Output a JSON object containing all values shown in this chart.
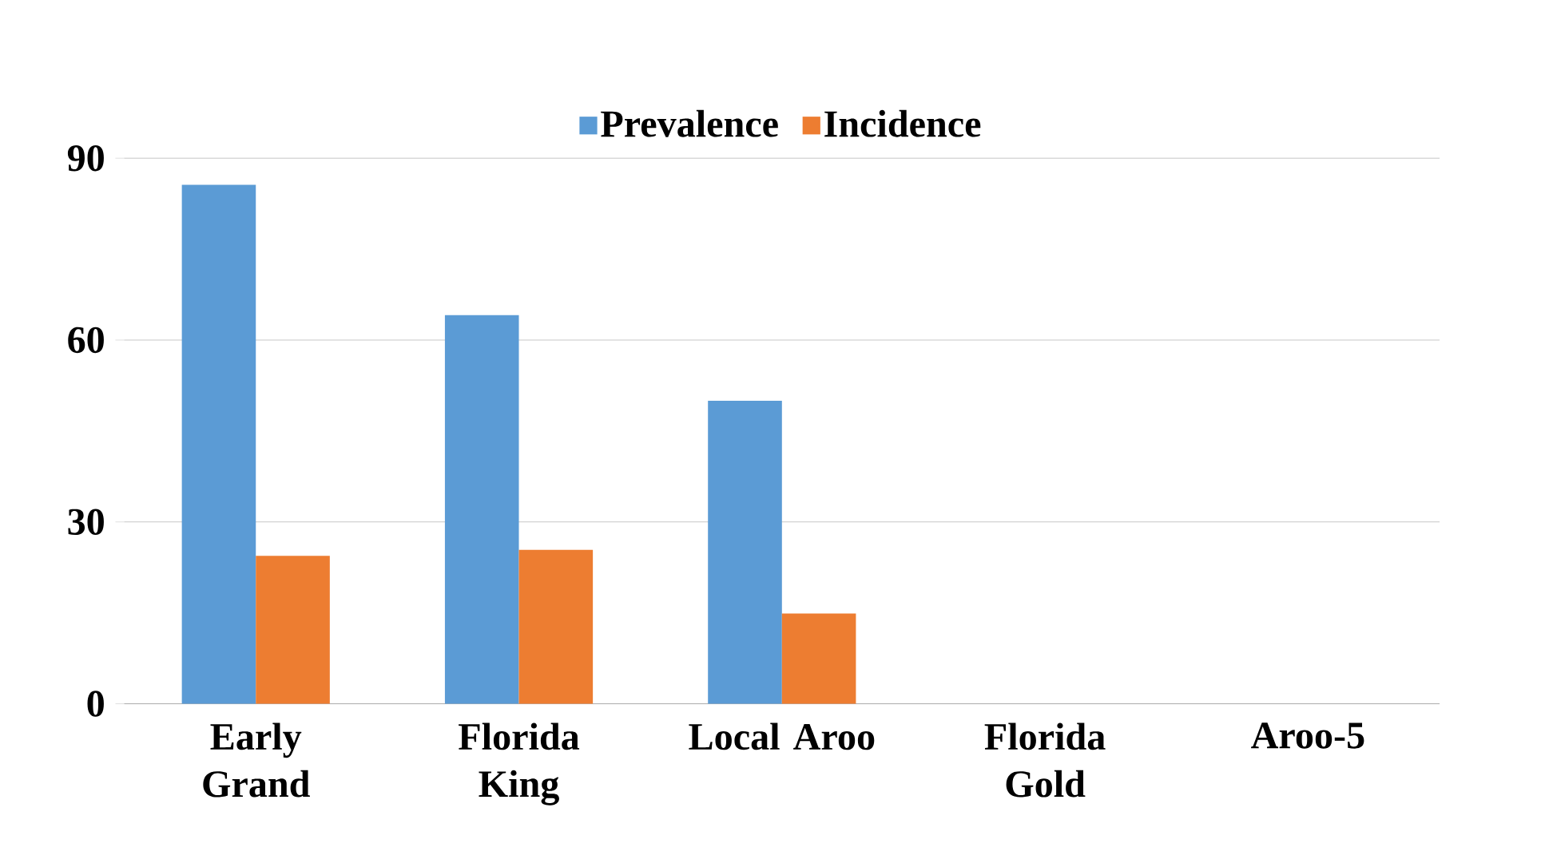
{
  "chart_data": {
    "type": "bar",
    "categories": [
      "Early Grand",
      "Florida King",
      "Local Aroo",
      "Florida Gold",
      "Aroo-5"
    ],
    "series": [
      {
        "name": "Prevalence",
        "color": "#5b9bd5",
        "values": [
          85.6,
          64.1,
          50.0,
          0,
          0
        ]
      },
      {
        "name": "Incidence",
        "color": "#ed7d31",
        "values": [
          24.4,
          25.4,
          14.9,
          0,
          0
        ]
      }
    ],
    "ylim": [
      0,
      90
    ],
    "yticks": [
      0,
      30,
      60,
      90
    ],
    "grid": "y",
    "legend": "top"
  }
}
